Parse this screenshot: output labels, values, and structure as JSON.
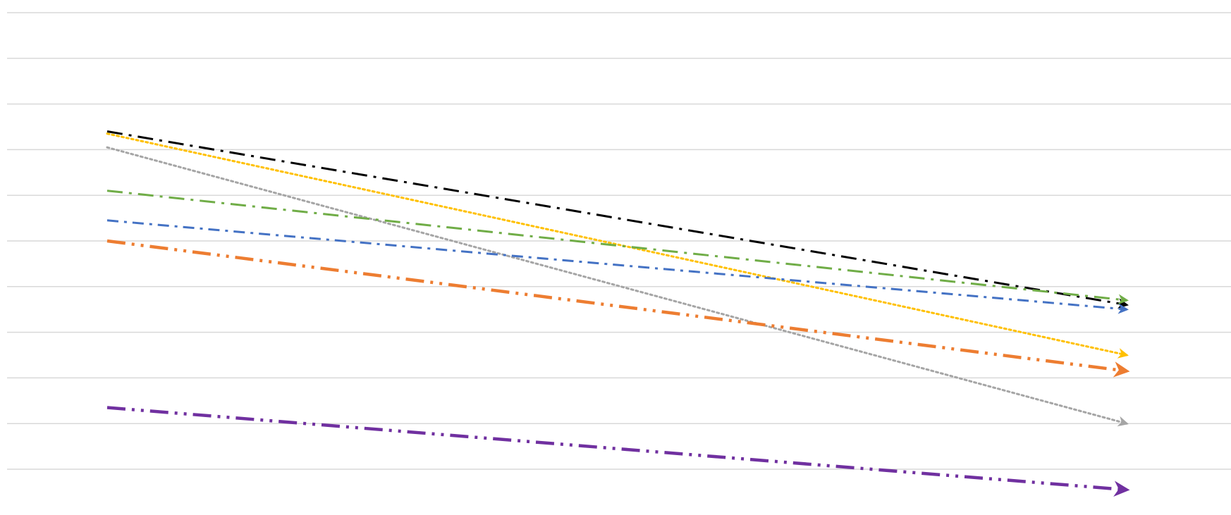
{
  "chart_data": {
    "type": "line",
    "title": "",
    "xlabel": "",
    "ylabel": "",
    "x": [
      0,
      1
    ],
    "ylim": [
      0,
      10
    ],
    "grid": true,
    "legend": "none",
    "arrowheads": true,
    "series": [
      {
        "color": "#000000",
        "dash": "long-dash-dot",
        "values": [
          7.4,
          3.6
        ]
      },
      {
        "color": "#FFC000",
        "dash": "dot",
        "values": [
          7.35,
          2.5
        ]
      },
      {
        "color": "#A5A5A5",
        "dash": "dot",
        "values": [
          7.05,
          1.0
        ]
      },
      {
        "color": "#70AD47",
        "dash": "long-dash-dot",
        "values": [
          6.1,
          3.7
        ]
      },
      {
        "color": "#4472C4",
        "dash": "dash-dot",
        "values": [
          5.45,
          3.5
        ]
      },
      {
        "color": "#ED7D31",
        "dash": "long-dash-dot-dot",
        "values": [
          5.0,
          2.15
        ]
      },
      {
        "color": "#7030A0",
        "dash": "long-dash-dot-dot",
        "values": [
          1.35,
          -0.45
        ]
      }
    ]
  }
}
